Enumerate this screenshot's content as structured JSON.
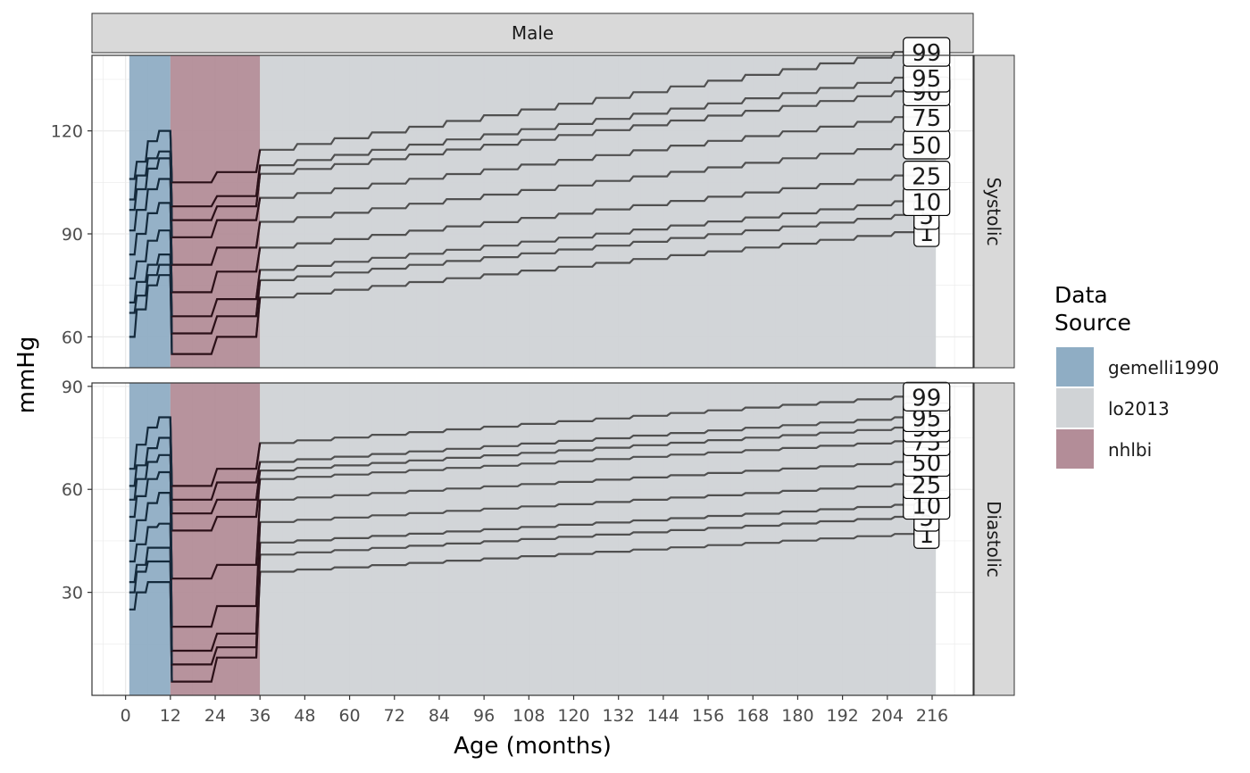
{
  "chart_data": {
    "type": "line",
    "facet_title": "Male",
    "xlabel": "Age (months)",
    "ylabel": "mmHg",
    "xlim": [
      -9,
      227
    ],
    "x_ticks": [
      0,
      12,
      24,
      36,
      48,
      60,
      72,
      84,
      96,
      108,
      120,
      132,
      144,
      156,
      168,
      180,
      192,
      204,
      216
    ],
    "grid": true,
    "legend": {
      "title": "Data\nSource",
      "placement": "right",
      "entries": [
        {
          "label": "gemelli1990",
          "color": "#8fadc4"
        },
        {
          "label": "lo2013",
          "color": "#d0d3d6"
        },
        {
          "label": "nhlbi",
          "color": "#b38d98"
        }
      ]
    },
    "source_regions": [
      {
        "source": "gemelli1990",
        "from": 1,
        "to": 12,
        "color": "#8fadc4",
        "line_color": "#142a3c"
      },
      {
        "source": "nhlbi",
        "from": 12,
        "to": 36,
        "color": "#b38d98",
        "line_color": "#2b1018"
      },
      {
        "source": "lo2013",
        "from": 36,
        "to": 217,
        "color": "#d0d3d6",
        "line_color": "#505050"
      }
    ],
    "panels": [
      {
        "strip": "Systolic",
        "ylim": [
          51,
          142
        ],
        "y_ticks": [
          60,
          90,
          120
        ],
        "series": [
          {
            "name": "1",
            "gem": [
              60,
              68,
              75,
              78,
              78
            ],
            "nh": [
              55,
              55,
              60,
              60
            ],
            "lo": [
              71.5,
              90.5
            ]
          },
          {
            "name": "5",
            "gem": [
              67,
              72,
              78,
              81,
              81
            ],
            "nh": [
              61,
              61,
              66,
              66
            ],
            "lo": [
              76.5,
              95.5
            ]
          },
          {
            "name": "10",
            "gem": [
              70,
              76,
              81,
              84,
              84
            ],
            "nh": [
              66,
              66,
              71,
              71
            ],
            "lo": [
              79.5,
              99.5
            ]
          },
          {
            "name": "25",
            "gem": [
              77,
              82,
              88,
              91,
              91
            ],
            "nh": [
              73,
              73,
              79,
              79
            ],
            "lo": [
              86,
              107
            ]
          },
          {
            "name": "50",
            "gem": [
              84,
              90,
              96,
              99,
              99
            ],
            "nh": [
              81,
              81,
              86,
              86
            ],
            "lo": [
              93.5,
              116
            ]
          },
          {
            "name": "75",
            "gem": [
              91,
              97,
              103,
              106,
              106
            ],
            "nh": [
              89,
              89,
              94,
              94
            ],
            "lo": [
              100.5,
              124
            ]
          },
          {
            "name": "90",
            "gem": [
              97,
              103,
              109,
              112,
              112
            ],
            "nh": [
              94,
              94,
              98,
              98
            ],
            "lo": [
              107.5,
              131.5
            ]
          },
          {
            "name": "95",
            "gem": [
              100,
              107,
              112,
              114,
              114
            ],
            "nh": [
              98,
              98,
              101,
              101
            ],
            "lo": [
              110,
              135.5
            ]
          },
          {
            "name": "99",
            "gem": [
              106,
              111,
              117,
              120,
              120
            ],
            "nh": [
              105,
              105,
              108,
              108
            ],
            "lo": [
              114.5,
              143
            ]
          }
        ]
      },
      {
        "strip": "Diastolic",
        "ylim": [
          0,
          91
        ],
        "y_ticks": [
          30,
          60,
          90
        ],
        "series": [
          {
            "name": "1",
            "gem": [
              25,
              30,
              33,
              33,
              33
            ],
            "nh": [
              4,
              4,
              11,
              11
            ],
            "lo": [
              36,
              47
            ]
          },
          {
            "name": "5",
            "gem": [
              30,
              36,
              39,
              39,
              39
            ],
            "nh": [
              9,
              9,
              14,
              14
            ],
            "lo": [
              41,
              52
            ]
          },
          {
            "name": "10",
            "gem": [
              33,
              38,
              43,
              43,
              43
            ],
            "nh": [
              13,
              13,
              18,
              18
            ],
            "lo": [
              44.5,
              55.5
            ]
          },
          {
            "name": "25",
            "gem": [
              39,
              44,
              49,
              50,
              50
            ],
            "nh": [
              20,
              20,
              26,
              26
            ],
            "lo": [
              50.5,
              61.5
            ]
          },
          {
            "name": "50",
            "gem": [
              45,
              51,
              56,
              59,
              59
            ],
            "nh": [
              34,
              34,
              38,
              38
            ],
            "lo": [
              57,
              68
            ]
          },
          {
            "name": "75",
            "gem": [
              52,
              58,
              63,
              65,
              65
            ],
            "nh": [
              48,
              48,
              52,
              52
            ],
            "lo": [
              63,
              74
            ]
          },
          {
            "name": "90",
            "gem": [
              57,
              63,
              68,
              70,
              70
            ],
            "nh": [
              53,
              53,
              57,
              57
            ],
            "lo": [
              65.5,
              78
            ]
          },
          {
            "name": "95",
            "gem": [
              61,
              67,
              72,
              75,
              75
            ],
            "nh": [
              57,
              57,
              62,
              62
            ],
            "lo": [
              68,
              81
            ]
          },
          {
            "name": "99",
            "gem": [
              66,
              73,
              78,
              81,
              81
            ],
            "nh": [
              61,
              61,
              66,
              66
            ],
            "lo": [
              73.5,
              87
            ]
          }
        ]
      }
    ]
  }
}
